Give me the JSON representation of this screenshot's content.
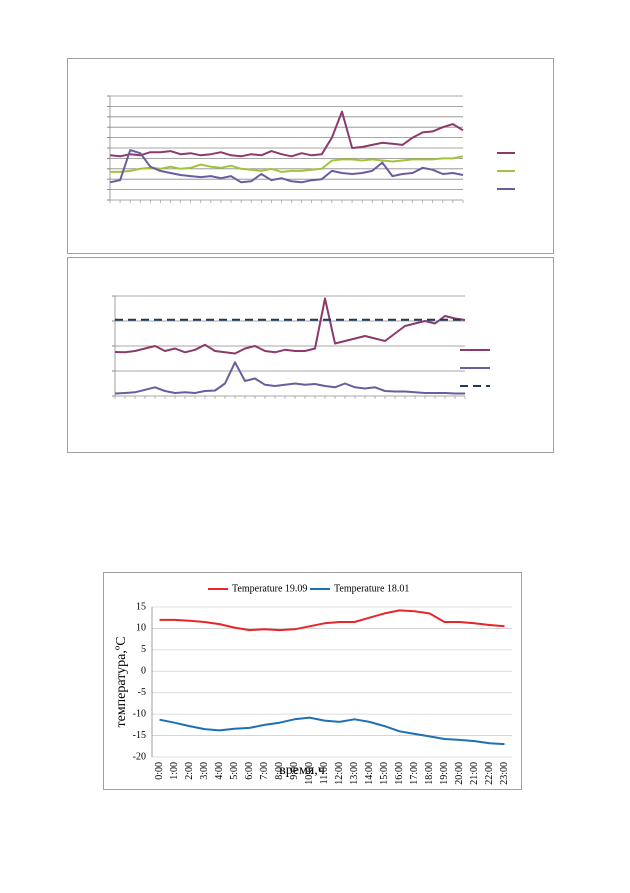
{
  "chart_data": [
    {
      "type": "line",
      "tick_labels": false,
      "grid": true,
      "ylim": [
        0,
        10
      ],
      "yticks": [
        0,
        1,
        2,
        3,
        4,
        5,
        6,
        7,
        8,
        9,
        10
      ],
      "series": [
        {
          "color": "#8b3a6b",
          "values": [
            4.3,
            4.2,
            4.4,
            4.3,
            4.6,
            4.6,
            4.7,
            4.4,
            4.5,
            4.3,
            4.4,
            4.6,
            4.3,
            4.2,
            4.4,
            4.3,
            4.7,
            4.4,
            4.2,
            4.5,
            4.3,
            4.4,
            6.0,
            8.5,
            5.0,
            5.1,
            5.3,
            5.5,
            5.4,
            5.3,
            6.0,
            6.5,
            6.6,
            7.0,
            7.3,
            6.7
          ]
        },
        {
          "color": "#a3c43a",
          "values": [
            2.7,
            2.7,
            2.8,
            3.0,
            3.1,
            3.0,
            3.2,
            3.0,
            3.1,
            3.4,
            3.2,
            3.1,
            3.3,
            3.0,
            2.9,
            2.8,
            3.0,
            2.7,
            2.8,
            2.8,
            2.9,
            3.0,
            3.8,
            3.9,
            3.9,
            3.8,
            3.9,
            3.8,
            3.7,
            3.8,
            3.9,
            3.9,
            3.9,
            4.0,
            4.0,
            4.2
          ]
        },
        {
          "color": "#6a5d9e",
          "values": [
            1.7,
            1.9,
            4.8,
            4.5,
            3.2,
            2.8,
            2.6,
            2.4,
            2.3,
            2.2,
            2.3,
            2.1,
            2.3,
            1.7,
            1.8,
            2.5,
            1.9,
            2.1,
            1.8,
            1.7,
            1.9,
            2.0,
            2.8,
            2.6,
            2.5,
            2.6,
            2.8,
            3.6,
            2.3,
            2.5,
            2.6,
            3.1,
            2.9,
            2.5,
            2.6,
            2.4
          ]
        }
      ]
    },
    {
      "type": "line",
      "tick_labels": false,
      "grid": true,
      "ylim": [
        0,
        4
      ],
      "yticks": [
        0,
        1,
        2,
        3,
        4
      ],
      "series": [
        {
          "color": "#8b3a6b",
          "values": [
            1.76,
            1.75,
            1.8,
            1.9,
            2.0,
            1.8,
            1.9,
            1.75,
            1.85,
            2.05,
            1.8,
            1.75,
            1.7,
            1.9,
            2.0,
            1.8,
            1.75,
            1.85,
            1.8,
            1.8,
            1.9,
            3.9,
            2.1,
            2.2,
            2.3,
            2.4,
            2.3,
            2.2,
            2.5,
            2.8,
            2.9,
            3.0,
            2.9,
            3.2,
            3.1,
            3.04
          ]
        },
        {
          "color": "#6a5d9e",
          "values": [
            0.1,
            0.12,
            0.15,
            0.25,
            0.35,
            0.2,
            0.12,
            0.15,
            0.12,
            0.2,
            0.22,
            0.5,
            1.35,
            0.6,
            0.7,
            0.45,
            0.4,
            0.45,
            0.5,
            0.45,
            0.48,
            0.4,
            0.35,
            0.5,
            0.35,
            0.3,
            0.35,
            0.2,
            0.18,
            0.18,
            0.15,
            0.12,
            0.12,
            0.12,
            0.1,
            0.1
          ]
        },
        {
          "color": "#1f3a5f",
          "dash": true,
          "values": [
            3.05,
            3.05,
            3.05,
            3.05,
            3.05,
            3.05,
            3.05,
            3.05,
            3.05,
            3.05,
            3.05,
            3.05,
            3.05,
            3.05,
            3.05,
            3.05,
            3.05,
            3.05,
            3.05,
            3.05,
            3.05,
            3.05,
            3.05,
            3.05,
            3.05,
            3.05,
            3.05,
            3.05,
            3.05,
            3.05,
            3.05,
            3.05,
            3.05,
            3.05,
            3.05,
            3.05
          ]
        }
      ]
    },
    {
      "type": "line",
      "tick_labels": true,
      "grid": true,
      "xlabel": "время,ч",
      "ylabel": "температура,ºC",
      "ylim": [
        -20,
        15
      ],
      "yticks": [
        -20,
        -15,
        -10,
        -5,
        0,
        5,
        10,
        15
      ],
      "categories": [
        "0:00",
        "1:00",
        "2:00",
        "3:00",
        "4:00",
        "5:00",
        "6:00",
        "7:00",
        "8:00",
        "9:00",
        "10:00",
        "11:00",
        "12:00",
        "13:00",
        "14:00",
        "15:00",
        "16:00",
        "17:00",
        "18:00",
        "19:00",
        "20:00",
        "21:00",
        "22:00",
        "23:00"
      ],
      "series": [
        {
          "name": "Temperature 19.09",
          "color": "#e8262a",
          "values": [
            12,
            12,
            11.8,
            11.5,
            11,
            10.2,
            9.6,
            9.8,
            9.6,
            9.8,
            10.5,
            11.2,
            11.5,
            11.5,
            12.5,
            13.5,
            14.2,
            14,
            13.5,
            11.5,
            11.5,
            11.2,
            10.8,
            10.5
          ]
        },
        {
          "name": "Temperature 18.01",
          "color": "#1f6fb5",
          "values": [
            -11.3,
            -12,
            -12.8,
            -13.5,
            -13.8,
            -13.4,
            -13.2,
            -12.5,
            -12,
            -11.2,
            -10.8,
            -11.5,
            -11.8,
            -11.2,
            -11.8,
            -12.8,
            -14,
            -14.6,
            -15.2,
            -15.8,
            -16,
            -16.3,
            -16.8,
            -17
          ]
        }
      ]
    }
  ]
}
